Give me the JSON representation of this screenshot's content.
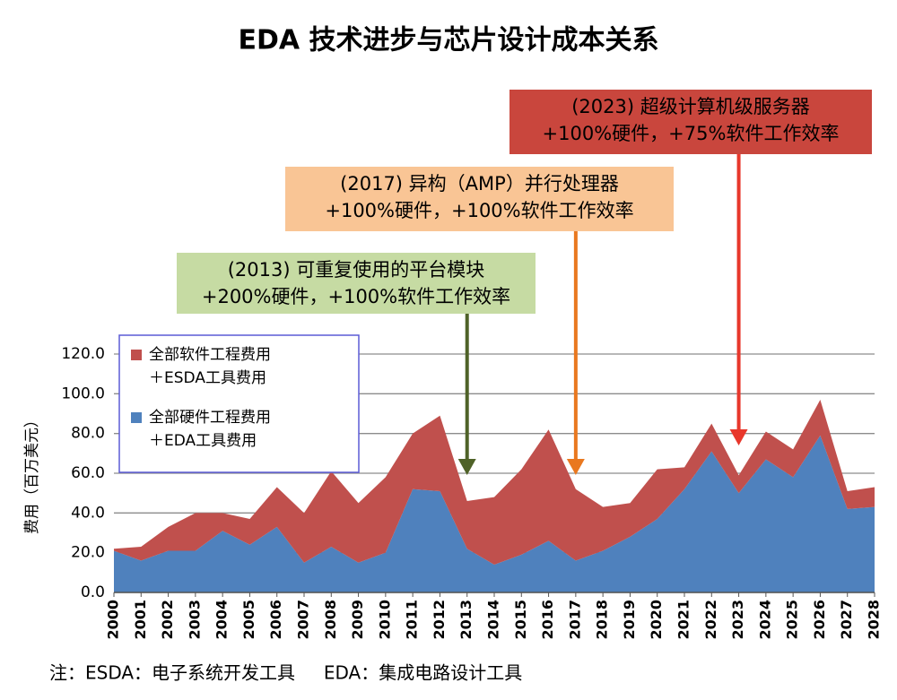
{
  "chart_data": {
    "type": "stacked_area",
    "title": "EDA 技术进步与芯片设计成本关系",
    "y_label": "费用（百万美元）",
    "footnote": "注：ESDA：电子系统开发工具     EDA：集成电路设计工具",
    "categories": [
      "2000",
      "2001",
      "2002",
      "2003",
      "2004",
      "2005",
      "2006",
      "2007",
      "2008",
      "2009",
      "2010",
      "2011",
      "2012",
      "2013",
      "2014",
      "2015",
      "2016",
      "2017",
      "2018",
      "2019",
      "2020",
      "2021",
      "2022",
      "2023",
      "2024",
      "2025",
      "2026",
      "2027",
      "2028"
    ],
    "series": [
      {
        "name": [
          "全部硬件工程费用",
          "＋EDA工具费用"
        ],
        "color": "#4f81bd",
        "values": [
          21,
          16,
          21,
          21,
          31,
          24,
          33,
          15,
          23,
          15,
          20,
          52,
          51,
          22,
          14,
          19,
          26,
          16,
          21,
          28,
          37,
          52,
          71,
          50,
          67,
          58,
          79,
          42,
          43
        ]
      },
      {
        "name": [
          "全部软件工程费用",
          "＋ESDA工具费用"
        ],
        "color": "#c0504d",
        "values": [
          1,
          7,
          12,
          19,
          9,
          13,
          20,
          25,
          38,
          30,
          38,
          28,
          38,
          24,
          34,
          43,
          56,
          36,
          22,
          17,
          25,
          11,
          14,
          9,
          14,
          14,
          18,
          9,
          10
        ]
      }
    ],
    "ylim": [
      0,
      120
    ],
    "yticks": [
      {
        "value": 0,
        "label": "0.0"
      },
      {
        "value": 20,
        "label": "20.0"
      },
      {
        "value": 40,
        "label": "40.0"
      },
      {
        "value": 60,
        "label": "60.0"
      },
      {
        "value": 80,
        "label": "80.0"
      },
      {
        "value": 100,
        "label": "100.0"
      },
      {
        "value": 120,
        "label": "120.0"
      }
    ],
    "grid": true,
    "annotations": [
      {
        "category": "2013",
        "lines": [
          "(2013) 可重复使用的平台模块",
          "+200%硬件，+100%软件工作效率"
        ],
        "color": "#c6dba3",
        "arrow_color": "#4f6228"
      },
      {
        "category": "2017",
        "lines": [
          "(2017) 异构（AMP）并行处理器",
          "+100%硬件，+100%软件工作效率"
        ],
        "color": "#f9c595",
        "arrow_color": "#e9781f"
      },
      {
        "category": "2023",
        "lines": [
          "(2023) 超级计算机级服务器",
          "+100%硬件，+75%软件工作效率"
        ],
        "color": "#c9463d",
        "arrow_color": "#e8372b"
      }
    ]
  }
}
